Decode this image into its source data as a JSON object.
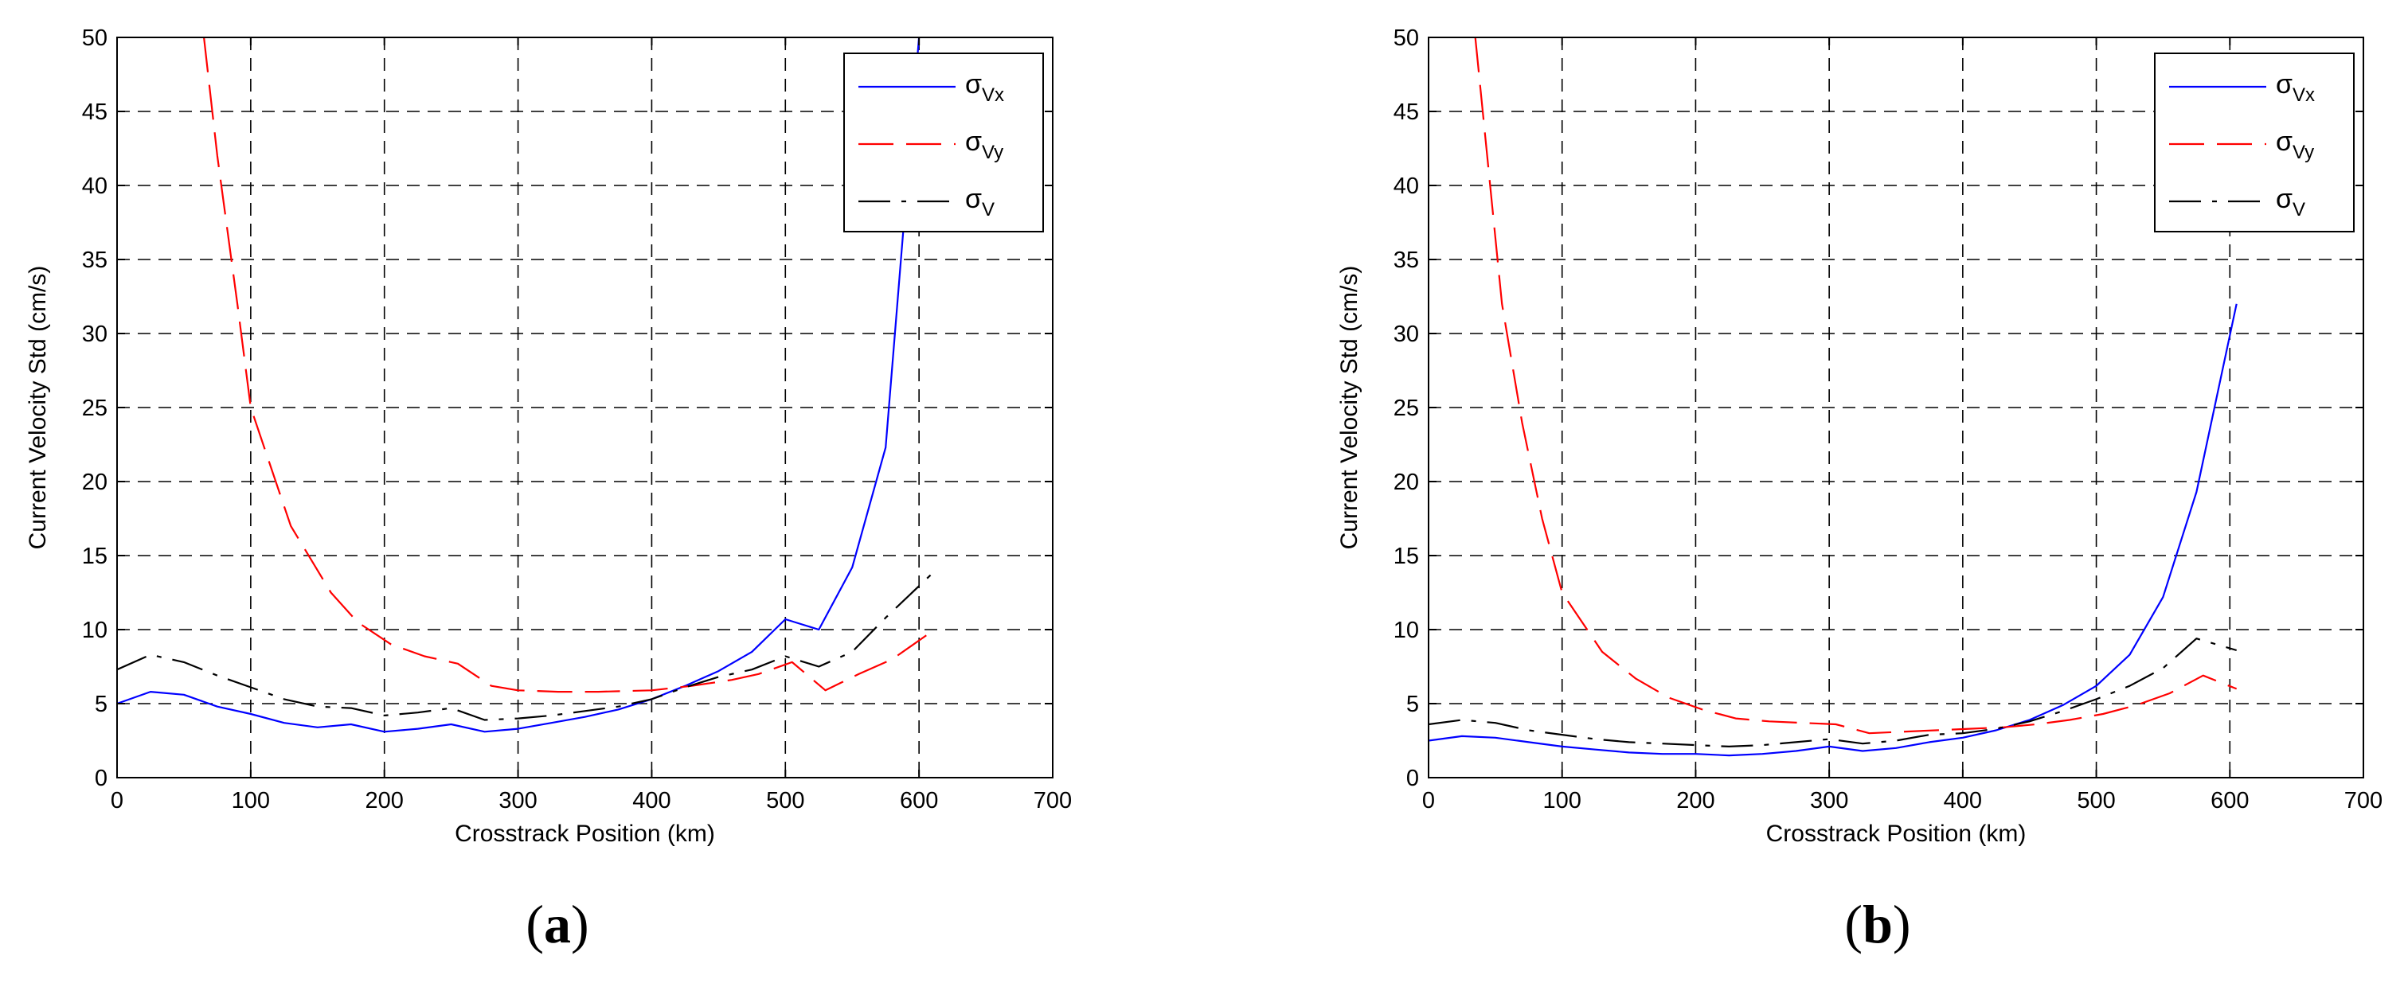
{
  "panel_labels": [
    "(a)",
    "(b)"
  ],
  "chart_data": [
    {
      "type": "line",
      "panel": "(a)",
      "xlabel": "Crosstrack Position (km)",
      "ylabel": "Current Velocity Std  (cm/s)",
      "xlim": [
        0,
        700
      ],
      "ylim": [
        0,
        50
      ],
      "xticks": [
        0,
        100,
        200,
        300,
        400,
        500,
        600,
        700
      ],
      "yticks": [
        0,
        5,
        10,
        15,
        20,
        25,
        30,
        35,
        40,
        45,
        50
      ],
      "grid": true,
      "legend_position": "top-right",
      "series": [
        {
          "name": "σVx",
          "label_main": "σ",
          "label_sub": "Vx",
          "color": "#0000ff",
          "dash": "solid",
          "x": [
            0,
            25,
            50,
            75,
            100,
            125,
            150,
            175,
            200,
            225,
            250,
            275,
            300,
            325,
            350,
            375,
            400,
            425,
            450,
            475,
            500,
            525,
            550,
            575,
            600
          ],
          "y": [
            5.0,
            5.8,
            5.6,
            4.8,
            4.3,
            3.7,
            3.4,
            3.6,
            3.1,
            3.3,
            3.6,
            3.1,
            3.3,
            3.7,
            4.1,
            4.6,
            5.3,
            6.2,
            7.2,
            8.5,
            10.7,
            10.0,
            14.2,
            22.3,
            50.0
          ]
        },
        {
          "name": "σVy",
          "label_main": "σ",
          "label_sub": "Vy",
          "color": "#ff0000",
          "dash": "longdash",
          "x": [
            65,
            75,
            90,
            100,
            115,
            130,
            160,
            180,
            205,
            230,
            255,
            280,
            300,
            330,
            360,
            400,
            430,
            460,
            480,
            505,
            530,
            555,
            580,
            610
          ],
          "y": [
            50.0,
            42.0,
            32.0,
            25.0,
            21.0,
            17.0,
            12.5,
            10.5,
            9.0,
            8.2,
            7.7,
            6.2,
            5.9,
            5.8,
            5.8,
            5.9,
            6.2,
            6.6,
            7.0,
            7.8,
            5.9,
            7.0,
            8.0,
            9.9
          ]
        },
        {
          "name": "σV",
          "label_main": "σ",
          "label_sub": "V",
          "color": "#000000",
          "dash": "dashdot",
          "x": [
            0,
            25,
            50,
            75,
            100,
            125,
            150,
            175,
            200,
            225,
            250,
            275,
            300,
            325,
            350,
            375,
            400,
            425,
            450,
            475,
            500,
            525,
            550,
            575,
            610
          ],
          "y": [
            7.3,
            8.3,
            7.8,
            6.9,
            6.1,
            5.3,
            4.8,
            4.7,
            4.2,
            4.4,
            4.7,
            3.9,
            4.0,
            4.2,
            4.5,
            4.8,
            5.3,
            6.1,
            6.8,
            7.3,
            8.2,
            7.5,
            8.5,
            10.8,
            13.8
          ]
        }
      ]
    },
    {
      "type": "line",
      "panel": "(b)",
      "xlabel": "Crosstrack Position (km)",
      "ylabel": "Current Velocity Std  (cm/s)",
      "xlim": [
        0,
        700
      ],
      "ylim": [
        0,
        50
      ],
      "xticks": [
        0,
        100,
        200,
        300,
        400,
        500,
        600,
        700
      ],
      "yticks": [
        0,
        5,
        10,
        15,
        20,
        25,
        30,
        35,
        40,
        45,
        50
      ],
      "grid": true,
      "legend_position": "top-right",
      "series": [
        {
          "name": "σVx",
          "label_main": "σ",
          "label_sub": "Vx",
          "color": "#0000ff",
          "dash": "solid",
          "x": [
            0,
            25,
            50,
            75,
            100,
            125,
            150,
            175,
            200,
            225,
            250,
            275,
            300,
            325,
            350,
            375,
            400,
            425,
            450,
            475,
            500,
            525,
            550,
            575,
            605
          ],
          "y": [
            2.5,
            2.8,
            2.7,
            2.4,
            2.1,
            1.9,
            1.7,
            1.6,
            1.6,
            1.5,
            1.6,
            1.8,
            2.1,
            1.8,
            2.0,
            2.4,
            2.7,
            3.2,
            3.9,
            4.9,
            6.2,
            8.3,
            12.2,
            19.3,
            32.0
          ]
        },
        {
          "name": "σVy",
          "label_main": "σ",
          "label_sub": "Vy",
          "color": "#ff0000",
          "dash": "longdash",
          "x": [
            35,
            45,
            55,
            70,
            85,
            100,
            115,
            130,
            155,
            180,
            205,
            230,
            255,
            280,
            305,
            330,
            355,
            380,
            405,
            430,
            455,
            480,
            505,
            530,
            555,
            580,
            605
          ],
          "y": [
            50.0,
            41.0,
            32.0,
            24.0,
            17.5,
            12.5,
            10.5,
            8.5,
            6.7,
            5.4,
            4.6,
            4.0,
            3.8,
            3.7,
            3.6,
            3.0,
            3.1,
            3.2,
            3.3,
            3.4,
            3.6,
            3.9,
            4.3,
            4.9,
            5.7,
            6.9,
            6.0
          ]
        },
        {
          "name": "σV",
          "label_main": "σ",
          "label_sub": "V",
          "color": "#000000",
          "dash": "dashdot",
          "x": [
            0,
            25,
            50,
            75,
            100,
            125,
            150,
            175,
            200,
            225,
            250,
            275,
            300,
            325,
            350,
            375,
            400,
            425,
            450,
            475,
            500,
            525,
            550,
            575,
            605
          ],
          "y": [
            3.6,
            3.9,
            3.7,
            3.2,
            2.9,
            2.6,
            2.4,
            2.3,
            2.2,
            2.1,
            2.2,
            2.4,
            2.6,
            2.3,
            2.5,
            2.9,
            3.0,
            3.3,
            3.8,
            4.5,
            5.3,
            6.2,
            7.4,
            9.4,
            8.6
          ]
        }
      ]
    }
  ]
}
